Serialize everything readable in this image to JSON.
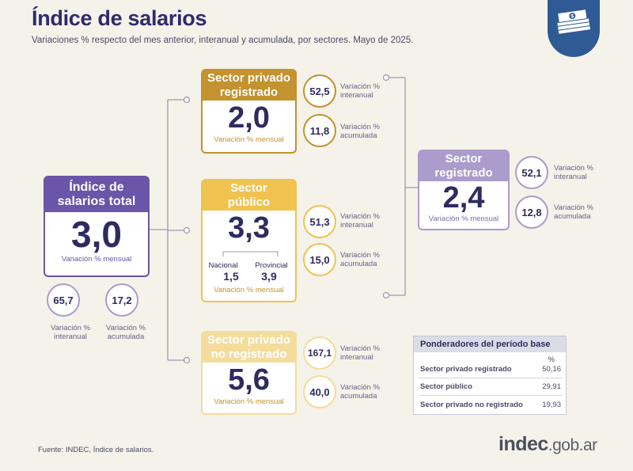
{
  "header": {
    "title": "Índice de salarios",
    "subtitle": "Variaciones % respecto del mes anterior, interanual y acumulada, por sectores. Mayo de 2025."
  },
  "logo": {
    "icon": "money-stack-icon"
  },
  "colors": {
    "purple": "#6a55a8",
    "gold": "#c4922e",
    "yellow": "#f0c350",
    "pale_yellow": "#f4dc9c",
    "lilac": "#ab9ccb",
    "navy": "#2f5a94"
  },
  "cards": {
    "total": {
      "title": "Índice de salarios total",
      "value": "3,0",
      "caption": "Variación % mensual"
    },
    "privado_registrado": {
      "title": "Sector privado registrado",
      "value": "2,0",
      "caption": "Variación % mensual"
    },
    "publico": {
      "title": "Sector público",
      "value": "3,3",
      "caption": "Variación % mensual",
      "nacional_label": "Nacional",
      "nacional_value": "1,5",
      "provincial_label": "Provincial",
      "provincial_value": "3,9"
    },
    "no_registrado": {
      "title": "Sector privado no registrado",
      "value": "5,6",
      "caption": "Variación % mensual"
    },
    "registrado": {
      "title": "Sector registrado",
      "value": "2,4",
      "caption": "Variación % mensual"
    }
  },
  "circles": {
    "total_interanual": "65,7",
    "total_acumulada": "17,2",
    "privreg_interanual": "52,5",
    "privreg_acumulada": "11,8",
    "publico_interanual": "51,3",
    "publico_acumulada": "15,0",
    "noreg_interanual": "167,1",
    "noreg_acumulada": "40,0",
    "registrado_interanual": "52,1",
    "registrado_acumulada": "12,8"
  },
  "labels": {
    "interanual_line1": "Variación %",
    "interanual_line2": "interanual",
    "acumulada_line1": "Variación %",
    "acumulada_line2": "acumulada"
  },
  "ponderadores": {
    "title": "Ponderadores del período base",
    "unit": "%",
    "rows": [
      {
        "label": "Sector privado registrado",
        "value": "50,16"
      },
      {
        "label": "Sector público",
        "value": "29,91"
      },
      {
        "label": "Sector privado no registrado",
        "value": "19,93"
      }
    ]
  },
  "footer": {
    "source": "Fuente: INDEC, Índice de salarios.",
    "brand_main": "indec",
    "brand_domain": ".gob.ar"
  }
}
